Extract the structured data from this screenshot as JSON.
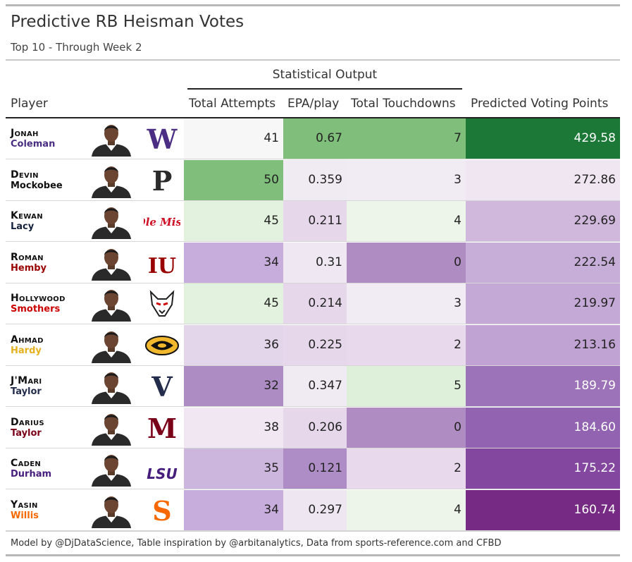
{
  "title": "Predictive RB Heisman Votes",
  "subtitle": "Top 10 - Through Week 2",
  "spanner": "Statistical Output",
  "columns": {
    "player": "Player",
    "attempts": "Total Attempts",
    "epa": "EPA/play",
    "touchdowns": "Total Touchdowns",
    "points": "Predicted Voting Points"
  },
  "footer": "Model by @DjDataScience, Table inspiration by @arbitanalytics, Data from sports-reference.com and CFBD",
  "chart_data": {
    "type": "table",
    "title": "Predictive RB Heisman Votes",
    "subtitle": "Top 10 - Through Week 2",
    "rows": [
      {
        "first": "Jonah",
        "last": "Coleman",
        "last_color": "#4b2e83",
        "school_logo": "washington-w-logo",
        "logo_text": "W",
        "logo_color": "#4b2e83",
        "attempts": "41",
        "epa": "0.67",
        "touchdowns": "7",
        "points": "429.58",
        "c_att": "#f7f7f7",
        "c_epa": "#7fbf7b",
        "c_td": "#7fbf7b",
        "c_pts": "#1b7837"
      },
      {
        "first": "Devin",
        "last": "Mockobee",
        "last_color": "#111111",
        "school_logo": "purdue-p-logo",
        "logo_text": "P",
        "logo_color": "#2b2b2b",
        "attempts": "50",
        "epa": "0.359",
        "touchdowns": "3",
        "points": "272.86",
        "c_att": "#7fbf7b",
        "c_epa": "#f0eaf3",
        "c_td": "#f1ebf3",
        "c_pts": "#f0e6f2"
      },
      {
        "first": "Kewan",
        "last": "Lacy",
        "last_color": "#14213d",
        "school_logo": "ole-miss-logo",
        "logo_text": "Ole Miss",
        "logo_color": "#ce1126",
        "attempts": "45",
        "epa": "0.211",
        "touchdowns": "4",
        "points": "229.69",
        "c_att": "#e2f2de",
        "c_epa": "#e6d8ea",
        "c_td": "#edf5ea",
        "c_pts": "#cfb8dc"
      },
      {
        "first": "Roman",
        "last": "Hemby",
        "last_color": "#990000",
        "school_logo": "indiana-iu-logo",
        "logo_text": "IU",
        "logo_color": "#990000",
        "attempts": "34",
        "epa": "0.31",
        "touchdowns": "0",
        "points": "222.54",
        "c_att": "#c7addb",
        "c_epa": "#efe8f2",
        "c_td": "#af8dc3",
        "c_pts": "#c6aed8"
      },
      {
        "first": "Hollywood",
        "last": "Smothers",
        "last_color": "#cc0000",
        "school_logo": "nc-state-wolf-logo",
        "logo_text": "",
        "logo_color": "#cc0000",
        "attempts": "45",
        "epa": "0.214",
        "touchdowns": "3",
        "points": "219.97",
        "c_att": "#e2f2de",
        "c_epa": "#e6d8ea",
        "c_td": "#f1ebf3",
        "c_pts": "#c4a9d6"
      },
      {
        "first": "Ahmad",
        "last": "Hardy",
        "last_color": "#e5b11f",
        "school_logo": "missouri-tiger-logo",
        "logo_text": "",
        "logo_color": "#f1b82d",
        "attempts": "36",
        "epa": "0.225",
        "touchdowns": "2",
        "points": "213.16",
        "c_att": "#e3d5ea",
        "c_epa": "#e6d8ea",
        "c_td": "#e8d9ec",
        "c_pts": "#c0a2d3"
      },
      {
        "first": "J'Mari",
        "last": "Taylor",
        "last_color": "#232d4b",
        "school_logo": "virginia-logo",
        "logo_text": "V",
        "logo_color": "#232d4b",
        "attempts": "32",
        "epa": "0.347",
        "touchdowns": "5",
        "points": "189.79",
        "c_att": "#ad8cc4",
        "c_epa": "#f0eaf3",
        "c_td": "#dff0da",
        "c_pts": "#9c72b8"
      },
      {
        "first": "Darius",
        "last": "Taylor",
        "last_color": "#7a0019",
        "school_logo": "minnesota-m-logo",
        "logo_text": "M",
        "logo_color": "#7a0019",
        "attempts": "38",
        "epa": "0.206",
        "touchdowns": "0",
        "points": "184.60",
        "c_att": "#f0e7f2",
        "c_epa": "#e6d8ea",
        "c_td": "#af8dc3",
        "c_pts": "#9263b0"
      },
      {
        "first": "Caden",
        "last": "Durham",
        "last_color": "#461d7c",
        "school_logo": "lsu-logo",
        "logo_text": "LSU",
        "logo_color": "#461d7c",
        "attempts": "35",
        "epa": "0.121",
        "touchdowns": "2",
        "points": "175.22",
        "c_att": "#cdb6de",
        "c_epa": "#ae8dc6",
        "c_td": "#e8d9ec",
        "c_pts": "#84479f"
      },
      {
        "first": "Yasin",
        "last": "Willis",
        "last_color": "#f76900",
        "school_logo": "syracuse-s-logo",
        "logo_text": "S",
        "logo_color": "#f76900",
        "attempts": "34",
        "epa": "0.297",
        "touchdowns": "4",
        "points": "160.74",
        "c_att": "#c7addb",
        "c_epa": "#eee6f1",
        "c_td": "#edf5ea",
        "c_pts": "#762a83"
      }
    ]
  }
}
